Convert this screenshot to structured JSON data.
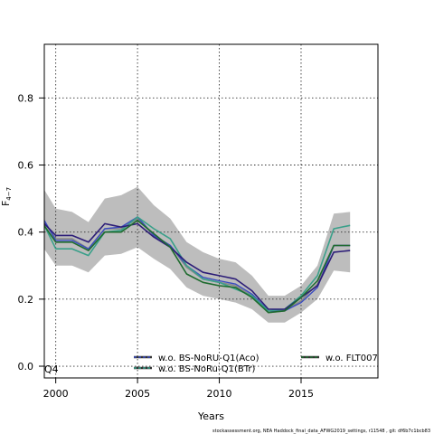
{
  "chart_data": {
    "type": "line",
    "xlabel": "Years",
    "ylabel": "F",
    "ylabel_sub": "4−7",
    "xlim": [
      1999.3,
      2019.7
    ],
    "ylim": [
      -0.035,
      0.96
    ],
    "xticks": [
      2000,
      2005,
      2010,
      2015
    ],
    "yticks": [
      0.0,
      0.2,
      0.4,
      0.6,
      0.8
    ],
    "ytick_labels": [
      "0.0",
      "0.2",
      "0.4",
      "0.6",
      "0.8"
    ],
    "grid": "dotted",
    "corner_label": "Q4",
    "x": [
      1999,
      2000,
      2001,
      2002,
      2003,
      2004,
      2005,
      2006,
      2007,
      2008,
      2009,
      2010,
      2011,
      2012,
      2013,
      2014,
      2015,
      2016,
      2017,
      2018
    ],
    "band": {
      "color": "#bdbdbd",
      "upper": [
        0.55,
        0.47,
        0.46,
        0.43,
        0.5,
        0.51,
        0.535,
        0.48,
        0.44,
        0.37,
        0.34,
        0.32,
        0.31,
        0.27,
        0.21,
        0.21,
        0.24,
        0.3,
        0.455,
        0.46
      ],
      "lower": [
        0.37,
        0.3,
        0.3,
        0.28,
        0.33,
        0.335,
        0.355,
        0.32,
        0.29,
        0.235,
        0.21,
        0.2,
        0.19,
        0.17,
        0.13,
        0.13,
        0.16,
        0.2,
        0.285,
        0.28
      ]
    },
    "series": [
      {
        "name": "",
        "color": "#888888",
        "width": 1.6,
        "values": [
          0.45,
          0.38,
          0.38,
          0.35,
          0.41,
          0.41,
          0.44,
          0.39,
          0.36,
          0.295,
          0.26,
          0.25,
          0.24,
          0.21,
          0.16,
          0.165,
          0.195,
          0.245,
          0.36,
          0.36
        ]
      },
      {
        "name": "w.o. BS-NoRU-Q1(Aco)",
        "color": "#3b4cc0",
        "width": 1.4,
        "values": [
          0.46,
          0.375,
          0.375,
          0.35,
          0.41,
          0.415,
          0.445,
          0.39,
          0.36,
          0.3,
          0.265,
          0.255,
          0.245,
          0.215,
          0.165,
          0.165,
          0.19,
          0.235,
          0.36,
          0.36
        ]
      },
      {
        "name": "w.o. BS-NoRu-Q1(BTr)",
        "color": "#3aa08a",
        "width": 1.6,
        "values": [
          0.45,
          0.35,
          0.35,
          0.33,
          0.4,
          0.405,
          0.445,
          0.41,
          0.38,
          0.3,
          0.26,
          0.25,
          0.23,
          0.21,
          0.165,
          0.17,
          0.21,
          0.27,
          0.41,
          0.42
        ]
      },
      {
        "name": "",
        "color": "#2c1d78",
        "width": 1.6,
        "values": [
          0.44,
          0.39,
          0.39,
          0.37,
          0.425,
          0.415,
          0.425,
          0.385,
          0.355,
          0.31,
          0.28,
          0.27,
          0.26,
          0.225,
          0.17,
          0.17,
          0.205,
          0.24,
          0.34,
          0.345
        ]
      },
      {
        "name": "w.o. FLT007",
        "color": "#1e6b2e",
        "width": 1.6,
        "values": [
          0.44,
          0.37,
          0.37,
          0.345,
          0.4,
          0.4,
          0.435,
          0.395,
          0.355,
          0.275,
          0.25,
          0.24,
          0.235,
          0.205,
          0.16,
          0.165,
          0.205,
          0.255,
          0.36,
          0.36
        ]
      }
    ],
    "legend": [
      {
        "label": "w.o. BS-NoRU-Q1(Aco)",
        "color": "#3b4cc0",
        "style": "dash"
      },
      {
        "label": "w.o. BS-NoRu-Q1(BTr)",
        "color": "#3aa08a",
        "style": "dash"
      },
      {
        "label": "w.o. FLT007",
        "color": "#1e6b2e",
        "style": "dash"
      }
    ],
    "footer": "stockassessment.org, NEA Haddock_final_data_AFWG2019_settings, r11548 , git: df6b7c1bcb83"
  }
}
